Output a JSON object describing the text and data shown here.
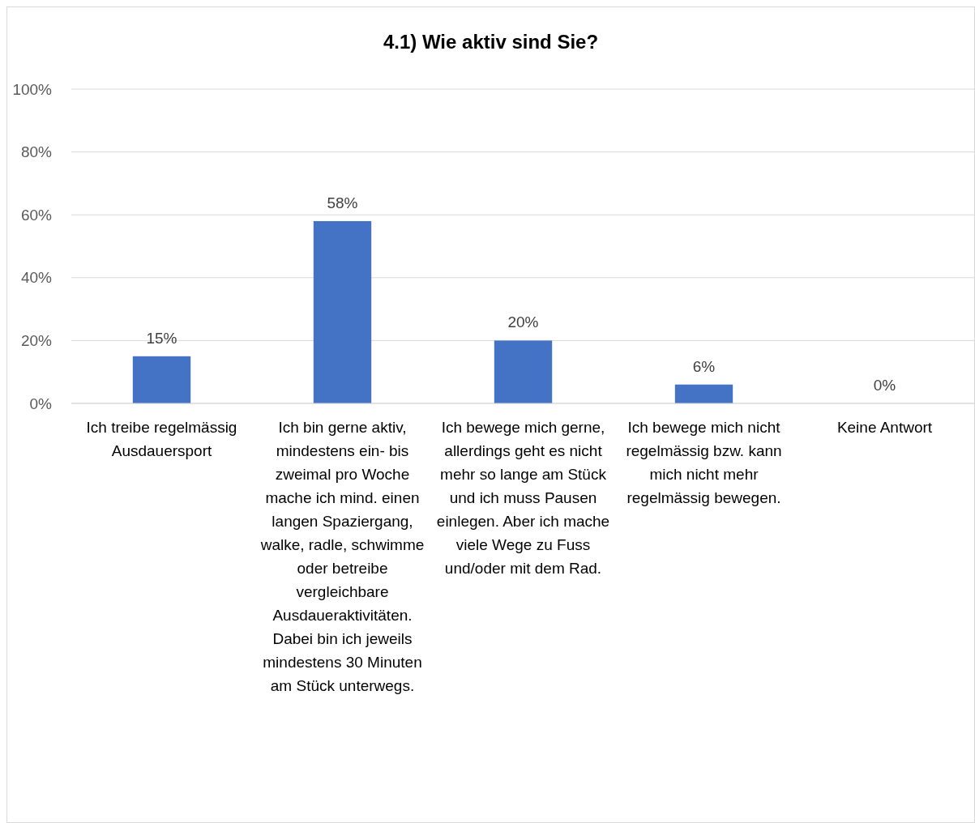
{
  "chart_data": {
    "type": "bar",
    "title": "4.1) Wie aktiv sind Sie?",
    "categories": [
      "Ich treibe regelmässig Ausdauersport",
      "Ich bin gerne aktiv, mindestens ein- bis zweimal pro Woche mache ich mind. einen langen Spaziergang, walke, radle, schwimme oder betreibe vergleichbare Ausdaueraktivitäten. Dabei bin ich jeweils mindestens 30 Minuten am Stück unterwegs.",
      "Ich bewege mich gerne, allerdings geht es nicht mehr so lange am Stück und ich muss Pausen einlegen. Aber ich mache viele Wege zu Fuss und/oder mit dem Rad.",
      "Ich bewege mich nicht regelmässig bzw. kann mich nicht mehr regelmässig bewegen.",
      "Keine Antwort"
    ],
    "values": [
      15,
      58,
      20,
      6,
      0
    ],
    "color": "#4472c4",
    "ylim": [
      0,
      100
    ],
    "yticks": [
      {
        "value": 0,
        "label": "0%"
      },
      {
        "value": 20,
        "label": "20%"
      },
      {
        "value": 40,
        "label": "40%"
      },
      {
        "value": 60,
        "label": "60%"
      },
      {
        "value": 80,
        "label": "80%"
      },
      {
        "value": 100,
        "label": "100%"
      }
    ],
    "value_labels": [
      "15%",
      "58%",
      "20%",
      "6%",
      "0%"
    ],
    "grid": "y"
  }
}
